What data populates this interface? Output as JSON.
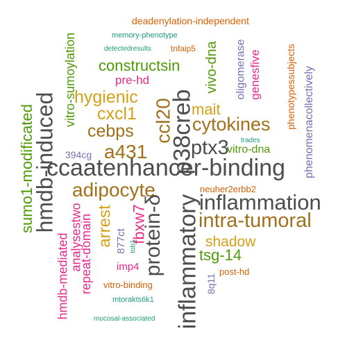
{
  "colors": {
    "dark_gray": "#4d4d4d",
    "green": "#4e9a06",
    "gold": "#d4a017",
    "brown": "#a0701b",
    "orange": "#d95f02",
    "teal": "#1b9e77",
    "purple": "#7570b3",
    "magenta": "#e7298a"
  },
  "words": {
    "ccaatenhancer_binding": "ccaatenhancer-binding",
    "inflammation": "inflammation",
    "intra_tumoral": "intra-tumoral",
    "inflammatory": "inflammatory",
    "hmdb_induced": "hmdb-induced",
    "protein_delta": "protein-δ",
    "p38creb": "p38creb",
    "cytokines": "cytokines",
    "ptx3": "ptx3",
    "adipocyte": "adipocyte",
    "a431": "a431",
    "cebps": "cebps",
    "cxcl1": "cxcl1",
    "hygienic": "hygienic",
    "ccl20": "ccl20",
    "mait": "mait",
    "shadow": "shadow",
    "tsg_14": "tsg-14",
    "arrest": "arrest",
    "fbxw7": "fbxw7",
    "constructsin": "constructsin",
    "sumo1_modificated": "sumo1-modificated",
    "vitro_sumoylation": "vitro-sumoylation",
    "vivo_dna": "vivo-dna",
    "vitro_dna": "vitro-dna",
    "hmdb_mediated": "hmdb-mediated",
    "analysestwo": "analysestwo",
    "repeat_domain": "repeat-domain",
    "pre_hd": "pre-hd",
    "genesfive": "genesfive",
    "oligomerase": "oligomerase",
    "phenotypessubjects": "phenotypessubjects",
    "phenomenacollectively": "phenomenacollectively",
    "deadenylation_independent": "deadenylation-independent",
    "memory_phenotype": "memory-phenotype",
    "detectedresults": "detectedresults",
    "tnfaip5": "tnfaip5",
    "trades": "trades",
    "neuher2erbb2": "neuher2erbb2",
    "imp4": "imp4",
    "877ct": "877ct",
    "tob1": "tob1",
    "394cg": "394cg",
    "post_hd": "post-hd",
    "8q11": "8q11",
    "vitro_binding": "vitro-binding",
    "mtorakts6k1": "mtorakts6k1",
    "mucosal_associated": "mucosal-associated"
  }
}
